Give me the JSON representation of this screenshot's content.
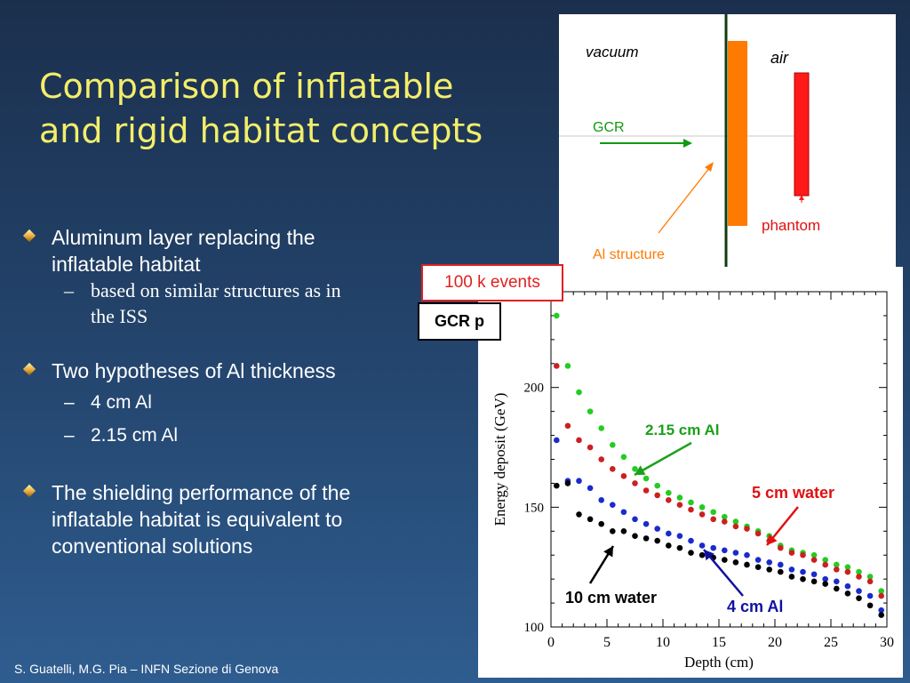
{
  "slide": {
    "title_line1": "Comparison of inflatable",
    "title_line2": "and rigid habitat concepts",
    "footer": "S. Guatelli, M.G. Pia – INFN Sezione di Genova"
  },
  "bullets": {
    "b1_line1": "Aluminum layer replacing the",
    "b1_line2": "inflatable habitat",
    "b1_sub_line1": "based on similar structures as in",
    "b1_sub_line2": "the ISS",
    "b2": "Two hypotheses of Al thickness",
    "b2_sub1": "4 cm Al",
    "b2_sub2": "2.15 cm Al",
    "b3_line1": "The shielding performance of the",
    "b3_line2": "inflatable habitat is equivalent to",
    "b3_line3": "conventional solutions",
    "dash": "–"
  },
  "diagram": {
    "vacuum": "vacuum",
    "air": "air",
    "gcr": "GCR",
    "phantom": "phantom",
    "al_structure": "Al structure",
    "colors": {
      "al_slab": "#ff7a00",
      "phantom": "#ff1a1a",
      "gcr_arrow": "#119911",
      "wall": "#0e3d0e"
    }
  },
  "chart_boxes": {
    "events": "100 k events",
    "particle": "GCR p"
  },
  "annotations": {
    "al215": "2.15 cm Al",
    "water5": "5 cm water",
    "water10": "10 cm water",
    "al4": "4 cm Al",
    "colors": {
      "al215": "#1aa01a",
      "water5": "#e01010",
      "water10": "#000000",
      "al4": "#1010a0"
    }
  },
  "chart_data": {
    "type": "scatter",
    "xlabel": "Depth (cm)",
    "ylabel": "Energy deposit (GeV)",
    "xlim": [
      0,
      30
    ],
    "ylim": [
      100,
      240
    ],
    "xticks": [
      0,
      5,
      10,
      15,
      20,
      25,
      30
    ],
    "yticks": [
      100,
      150,
      200
    ],
    "x": [
      0.5,
      1.5,
      2.5,
      3.5,
      4.5,
      5.5,
      6.5,
      7.5,
      8.5,
      9.5,
      10.5,
      11.5,
      12.5,
      13.5,
      14.5,
      15.5,
      16.5,
      17.5,
      18.5,
      19.5,
      20.5,
      21.5,
      22.5,
      23.5,
      24.5,
      25.5,
      26.5,
      27.5,
      28.5,
      29.5
    ],
    "series": [
      {
        "name": "2.15 cm Al",
        "color": "#22cc22",
        "values": [
          230,
          209,
          198,
          190,
          183,
          176,
          171,
          166,
          162,
          159,
          156,
          154,
          152,
          150,
          148,
          146,
          144,
          142,
          140,
          138,
          134,
          132,
          131,
          130,
          128,
          126,
          125,
          123,
          121,
          115
        ]
      },
      {
        "name": "5 cm water",
        "color": "#cc2020",
        "values": [
          209,
          184,
          178,
          175,
          170,
          166,
          163,
          160,
          157,
          155,
          153,
          151,
          149,
          147,
          145,
          144,
          142,
          141,
          139,
          136,
          133,
          131,
          130,
          128,
          126,
          124,
          123,
          121,
          119,
          113
        ]
      },
      {
        "name": "4 cm Al",
        "color": "#1a2acc",
        "values": [
          178,
          161,
          161,
          158,
          153,
          151,
          148,
          145,
          143,
          141,
          139,
          138,
          136,
          134,
          133,
          132,
          131,
          130,
          128,
          127,
          126,
          124,
          123,
          122,
          120,
          119,
          117,
          115,
          113,
          107
        ]
      },
      {
        "name": "10 cm water",
        "color": "#000000",
        "values": [
          159,
          160,
          147,
          145,
          143,
          140,
          140,
          138,
          137,
          136,
          134,
          133,
          131,
          130,
          129,
          128,
          127,
          126,
          125,
          124,
          123,
          121,
          120,
          119,
          118,
          116,
          114,
          112,
          109,
          105
        ]
      }
    ]
  }
}
